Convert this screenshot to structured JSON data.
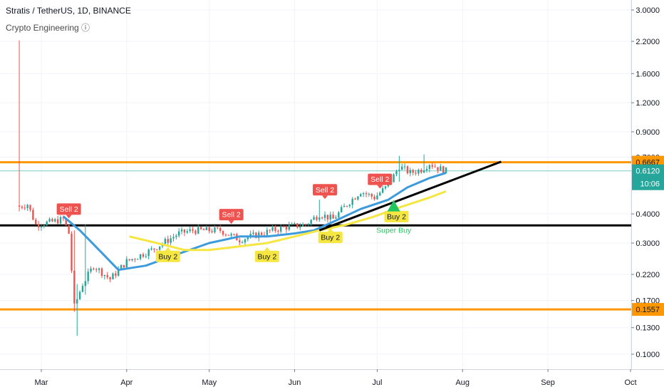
{
  "header": {
    "title": "Stratis / TetherUS, 1D, BINANCE",
    "indicator": "Crypto Engineering ⓘ"
  },
  "colors": {
    "bull": "#26a69a",
    "bear": "#ef5350",
    "ema_blue": "#3d9bdc",
    "ema_yellow": "#f5e642",
    "level_orange": "#ff9800",
    "trend_black": "#000000",
    "current_price": "#26a69a",
    "sell_bg": "#ef5350",
    "buy_bg": "#f5e642",
    "superbuy": "#22c55e"
  },
  "chart_data": {
    "type": "candlestick",
    "symbol": "Stratis / TetherUS",
    "interval": "1D",
    "exchange": "BINANCE",
    "y_scale": "log",
    "ylim": [
      0.085,
      3.2
    ],
    "y_ticks": [
      {
        "value": 3.0,
        "label": "3.0000"
      },
      {
        "value": 2.2,
        "label": "2.2000"
      },
      {
        "value": 1.6,
        "label": "1.6000"
      },
      {
        "value": 1.2,
        "label": "1.2000"
      },
      {
        "value": 0.9,
        "label": "0.9000"
      },
      {
        "value": 0.7,
        "label": "0.7000"
      },
      {
        "value": 0.4,
        "label": "0.4000"
      },
      {
        "value": 0.3,
        "label": "0.3000"
      },
      {
        "value": 0.22,
        "label": "0.2200"
      },
      {
        "value": 0.17,
        "label": "0.1700"
      },
      {
        "value": 0.13,
        "label": "0.1300"
      },
      {
        "value": 0.1,
        "label": "0.1000"
      }
    ],
    "x_range": [
      "2020-02-15",
      "2020-10-01"
    ],
    "x_ticks": [
      {
        "date": "2020-03-01",
        "label": "Mar"
      },
      {
        "date": "2020-04-01",
        "label": "Apr"
      },
      {
        "date": "2020-05-01",
        "label": "May"
      },
      {
        "date": "2020-06-01",
        "label": "Jun"
      },
      {
        "date": "2020-07-01",
        "label": "Jul"
      },
      {
        "date": "2020-08-01",
        "label": "Aug"
      },
      {
        "date": "2020-09-01",
        "label": "Sep"
      },
      {
        "date": "2020-10-01",
        "label": "Oct"
      }
    ],
    "candle_range": [
      "2020-02-22",
      "2020-07-26"
    ],
    "close_path": [
      [
        "2020-02-22",
        0.43
      ],
      [
        "2020-02-25",
        0.44
      ],
      [
        "2020-02-28",
        0.36
      ],
      [
        "2020-03-05",
        0.37
      ],
      [
        "2020-03-09",
        0.38
      ],
      [
        "2020-03-11",
        0.33
      ],
      [
        "2020-03-13",
        0.16
      ],
      [
        "2020-03-16",
        0.2
      ],
      [
        "2020-03-20",
        0.24
      ],
      [
        "2020-03-26",
        0.21
      ],
      [
        "2020-04-01",
        0.25
      ],
      [
        "2020-04-10",
        0.28
      ],
      [
        "2020-04-20",
        0.33
      ],
      [
        "2020-04-25",
        0.34
      ],
      [
        "2020-05-05",
        0.34
      ],
      [
        "2020-05-12",
        0.31
      ],
      [
        "2020-05-20",
        0.33
      ],
      [
        "2020-05-28",
        0.35
      ],
      [
        "2020-06-05",
        0.36
      ],
      [
        "2020-06-10",
        0.4
      ],
      [
        "2020-06-15",
        0.38
      ],
      [
        "2020-06-20",
        0.44
      ],
      [
        "2020-06-25",
        0.5
      ],
      [
        "2020-06-30",
        0.47
      ],
      [
        "2020-07-05",
        0.53
      ],
      [
        "2020-07-09",
        0.64
      ],
      [
        "2020-07-13",
        0.6
      ],
      [
        "2020-07-17",
        0.62
      ],
      [
        "2020-07-20",
        0.66
      ],
      [
        "2020-07-23",
        0.63
      ],
      [
        "2020-07-26",
        0.612
      ]
    ],
    "spikes": [
      {
        "date": "2020-02-22",
        "high": 2.22,
        "low": 0.41
      },
      {
        "date": "2020-03-13",
        "high": 0.34,
        "low": 0.152
      },
      {
        "date": "2020-03-14",
        "high": 0.2,
        "low": 0.12
      },
      {
        "date": "2020-03-17",
        "high": 0.36,
        "low": 0.18
      },
      {
        "date": "2020-06-10",
        "high": 0.46,
        "low": 0.37
      },
      {
        "date": "2020-07-09",
        "high": 0.71,
        "low": 0.55
      },
      {
        "date": "2020-07-18",
        "high": 0.72,
        "low": 0.6
      }
    ],
    "series": [
      {
        "line": "blue",
        "points": [
          [
            "2020-03-09",
            0.39
          ],
          [
            "2020-03-15",
            0.34
          ],
          [
            "2020-03-22",
            0.28
          ],
          [
            "2020-03-29",
            0.23
          ],
          [
            "2020-04-08",
            0.24
          ],
          [
            "2020-04-20",
            0.27
          ],
          [
            "2020-05-01",
            0.3
          ],
          [
            "2020-05-12",
            0.32
          ],
          [
            "2020-05-22",
            0.32
          ],
          [
            "2020-06-01",
            0.33
          ],
          [
            "2020-06-08",
            0.34
          ],
          [
            "2020-06-15",
            0.37
          ],
          [
            "2020-06-25",
            0.42
          ],
          [
            "2020-07-05",
            0.46
          ],
          [
            "2020-07-12",
            0.52
          ],
          [
            "2020-07-20",
            0.57
          ],
          [
            "2020-07-26",
            0.6
          ]
        ]
      },
      {
        "line": "yellow",
        "points": [
          [
            "2020-04-02",
            0.32
          ],
          [
            "2020-04-12",
            0.3
          ],
          [
            "2020-04-22",
            0.28
          ],
          [
            "2020-05-01",
            0.28
          ],
          [
            "2020-05-12",
            0.29
          ],
          [
            "2020-05-22",
            0.3
          ],
          [
            "2020-06-01",
            0.32
          ],
          [
            "2020-06-10",
            0.34
          ],
          [
            "2020-06-20",
            0.36
          ],
          [
            "2020-06-30",
            0.39
          ],
          [
            "2020-07-10",
            0.43
          ],
          [
            "2020-07-20",
            0.47
          ],
          [
            "2020-07-26",
            0.5
          ]
        ]
      }
    ],
    "horizontal_levels": [
      {
        "value": 0.6667,
        "label": "0.6667",
        "color": "#ff9800"
      },
      {
        "value": 0.1557,
        "label": "0.1557",
        "color": "#ff9800"
      },
      {
        "value": 0.357,
        "label": "",
        "color": "#000000"
      }
    ],
    "trendline": {
      "from": [
        "2020-06-10",
        0.34
      ],
      "to": [
        "2020-08-15",
        0.67
      ]
    },
    "current_price": {
      "value": 0.612,
      "label": "0.6120",
      "countdown": "10:06"
    },
    "signals": [
      {
        "type": "sell",
        "label": "Sell 2",
        "date": "2020-03-11",
        "price": 0.38
      },
      {
        "type": "sell",
        "label": "Sell 2",
        "date": "2020-05-09",
        "price": 0.36
      },
      {
        "type": "sell",
        "label": "Sell 2",
        "date": "2020-06-12",
        "price": 0.46
      },
      {
        "type": "sell",
        "label": "Sell 2",
        "date": "2020-07-02",
        "price": 0.51
      },
      {
        "type": "buy",
        "label": "Buy 2",
        "date": "2020-04-16",
        "price": 0.29
      },
      {
        "type": "buy",
        "label": "Buy 2",
        "date": "2020-05-22",
        "price": 0.29
      },
      {
        "type": "buy",
        "label": "Buy 2",
        "date": "2020-06-14",
        "price": 0.35
      },
      {
        "type": "buy",
        "label": "Buy 2",
        "date": "2020-07-08",
        "price": 0.43
      }
    ],
    "super_buy": {
      "label": "Super Buy",
      "date": "2020-07-07",
      "price": 0.41
    }
  }
}
